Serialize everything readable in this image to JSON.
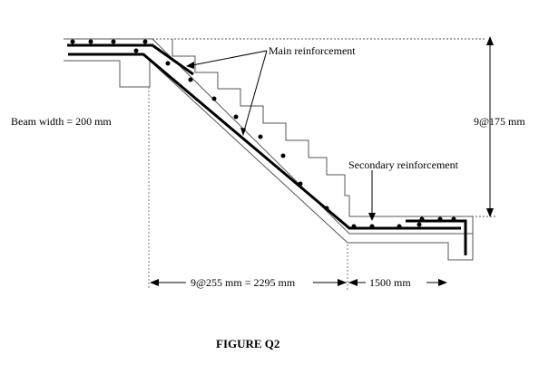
{
  "labels": {
    "main_reinforcement": "Main reinforcement",
    "beam_width": "Beam width = 200 mm",
    "riser_dim": "9@175 mm",
    "secondary_reinforcement": "Secondary reinforcement",
    "going_dim": "9@255 mm = 2295 mm",
    "landing_dim": "1500 mm",
    "caption": "FIGURE Q2"
  }
}
